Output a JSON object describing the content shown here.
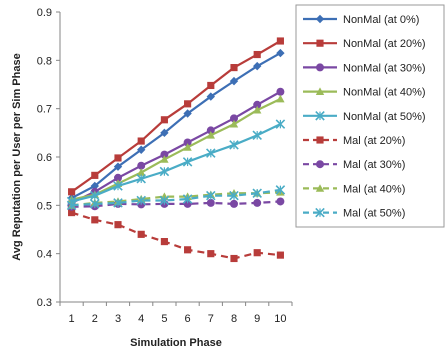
{
  "chart_data": {
    "type": "line",
    "xlabel": "Simulation Phase",
    "ylabel": "Avg Reputation per User per Sim Phase",
    "x": [
      1,
      2,
      3,
      4,
      5,
      6,
      7,
      8,
      9,
      10
    ],
    "ylim": [
      0.3,
      0.9
    ],
    "yticks": [
      "0.3",
      "0.4",
      "0.5",
      "0.6",
      "0.7",
      "0.8",
      "0.9"
    ],
    "xticks": [
      "1",
      "2",
      "3",
      "4",
      "5",
      "6",
      "7",
      "8",
      "9",
      "10"
    ],
    "grid": false,
    "legend_position": "right",
    "series": [
      {
        "name": "NonMal (at 0%)",
        "color": "#3d6fb5",
        "marker": "diamond",
        "dashed": false,
        "values": [
          0.515,
          0.54,
          0.58,
          0.615,
          0.65,
          0.69,
          0.725,
          0.757,
          0.788,
          0.815
        ]
      },
      {
        "name": "NonMal (at 20%)",
        "color": "#b83c3a",
        "marker": "square",
        "dashed": false,
        "values": [
          0.528,
          0.562,
          0.598,
          0.633,
          0.677,
          0.71,
          0.748,
          0.785,
          0.812,
          0.84
        ]
      },
      {
        "name": "NonMal (at 30%)",
        "color": "#7a48a3",
        "marker": "circle",
        "dashed": false,
        "values": [
          0.505,
          0.528,
          0.557,
          0.582,
          0.605,
          0.63,
          0.655,
          0.68,
          0.708,
          0.735
        ]
      },
      {
        "name": "NonMal (at 40%)",
        "color": "#9bbb59",
        "marker": "triangle",
        "dashed": false,
        "values": [
          0.512,
          0.522,
          0.545,
          0.568,
          0.595,
          0.62,
          0.645,
          0.668,
          0.697,
          0.72
        ]
      },
      {
        "name": "NonMal (at 50%)",
        "color": "#4aacc6",
        "marker": "x",
        "dashed": false,
        "values": [
          0.508,
          0.52,
          0.54,
          0.555,
          0.57,
          0.59,
          0.608,
          0.625,
          0.645,
          0.668
        ]
      },
      {
        "name": "Mal (at 20%)",
        "color": "#b83c3a",
        "marker": "square",
        "dashed": true,
        "values": [
          0.485,
          0.47,
          0.46,
          0.44,
          0.425,
          0.408,
          0.4,
          0.39,
          0.402,
          0.397
        ]
      },
      {
        "name": "Mal (at 30%)",
        "color": "#7a48a3",
        "marker": "circle",
        "dashed": true,
        "values": [
          0.497,
          0.498,
          0.503,
          0.502,
          0.503,
          0.503,
          0.505,
          0.503,
          0.505,
          0.508
        ]
      },
      {
        "name": "Mal (at 40%)",
        "color": "#9bbb59",
        "marker": "triangle",
        "dashed": true,
        "values": [
          0.5,
          0.505,
          0.508,
          0.513,
          0.518,
          0.518,
          0.522,
          0.525,
          0.525,
          0.527
        ]
      },
      {
        "name": "Mal (at 50%)",
        "color": "#4aacc6",
        "marker": "x",
        "dashed": true,
        "values": [
          0.5,
          0.503,
          0.505,
          0.51,
          0.51,
          0.513,
          0.52,
          0.52,
          0.525,
          0.532
        ]
      }
    ]
  }
}
